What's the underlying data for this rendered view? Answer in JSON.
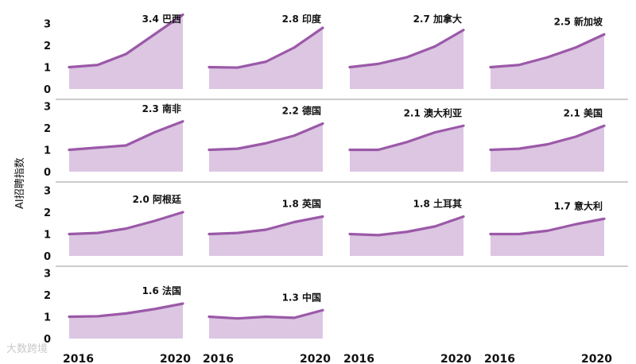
{
  "y_axis_label": "AI招聘指数",
  "watermark": "大数跨境",
  "chart_data": {
    "type": "area",
    "layout": "small-multiples",
    "ylabel": "AI招聘指数",
    "ylim": [
      0,
      3.5
    ],
    "yticks": [
      0,
      1,
      2,
      3
    ],
    "x": [
      2016,
      2017,
      2018,
      2019,
      2020
    ],
    "xtick_labels": [
      "2016",
      "2020"
    ],
    "line_color": "#9b59a8",
    "fill_color": "#dcc6e2",
    "panels": [
      {
        "label": "3.4 巴西",
        "values": [
          1.0,
          1.1,
          1.6,
          2.5,
          3.4
        ]
      },
      {
        "label": "2.8 印度",
        "values": [
          1.0,
          0.98,
          1.25,
          1.9,
          2.8
        ]
      },
      {
        "label": "2.7 加拿大",
        "values": [
          1.0,
          1.15,
          1.45,
          1.95,
          2.7
        ]
      },
      {
        "label": "2.5 新加坡",
        "values": [
          1.0,
          1.1,
          1.45,
          1.9,
          2.5
        ]
      },
      {
        "label": "2.3 南非",
        "values": [
          1.0,
          1.1,
          1.2,
          1.8,
          2.3
        ]
      },
      {
        "label": "2.2 德国",
        "values": [
          1.0,
          1.05,
          1.3,
          1.65,
          2.2
        ]
      },
      {
        "label": "2.1 澳大利亚",
        "values": [
          1.0,
          1.0,
          1.35,
          1.8,
          2.1
        ]
      },
      {
        "label": "2.1 美国",
        "values": [
          1.0,
          1.05,
          1.25,
          1.6,
          2.1
        ]
      },
      {
        "label": "2.0 阿根廷",
        "values": [
          1.0,
          1.05,
          1.25,
          1.6,
          2.0
        ]
      },
      {
        "label": "1.8 英国",
        "values": [
          1.0,
          1.05,
          1.2,
          1.55,
          1.8
        ]
      },
      {
        "label": "1.8 土耳其",
        "values": [
          1.0,
          0.95,
          1.1,
          1.35,
          1.8
        ]
      },
      {
        "label": "1.7 意大利",
        "values": [
          1.0,
          1.0,
          1.15,
          1.45,
          1.7
        ]
      },
      {
        "label": "1.6 法国",
        "values": [
          1.0,
          1.02,
          1.15,
          1.35,
          1.6
        ]
      },
      {
        "label": "1.3 中国",
        "values": [
          1.0,
          0.92,
          1.0,
          0.95,
          1.3
        ]
      }
    ]
  }
}
